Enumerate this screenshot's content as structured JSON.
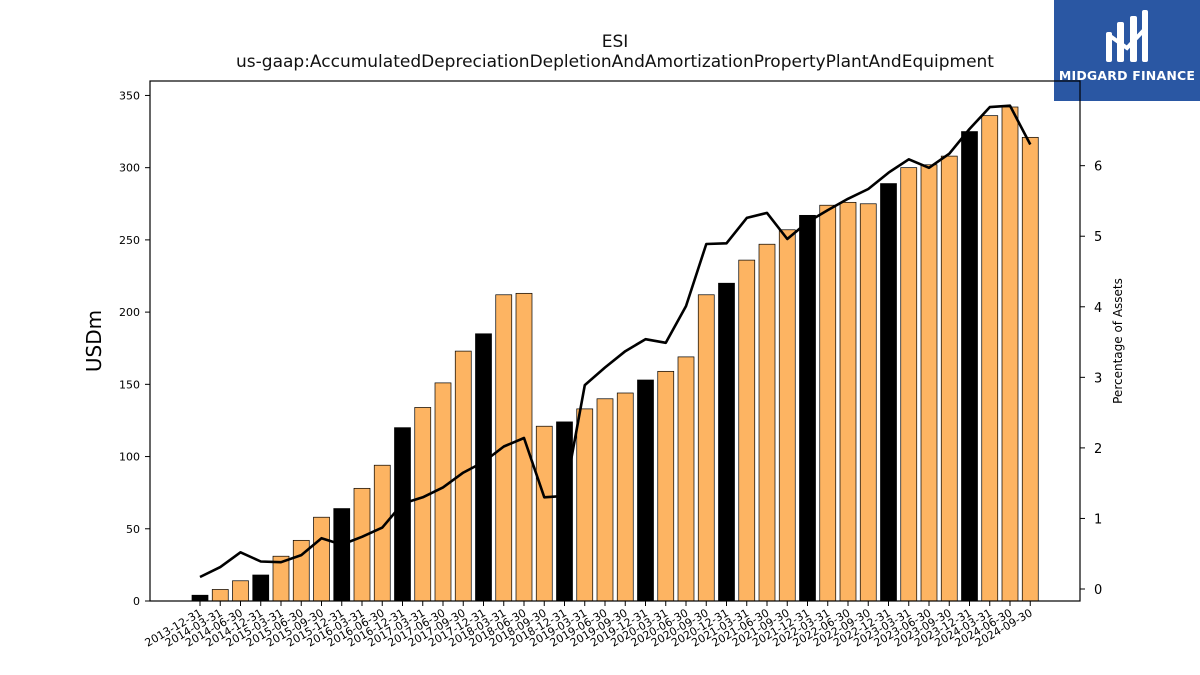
{
  "brand": {
    "name": "MIDGARD FINANCE",
    "bg": "#2a57a3"
  },
  "chart_data": {
    "type": "bar",
    "title": "ESI",
    "subtitle": "us-gaap:AccumulatedDepreciationDepletionAndAmortizationPropertyPlantAndEquipment",
    "ylabel": "USDm",
    "y2label": "Percentage of Assets",
    "ylim": [
      0,
      360
    ],
    "y2lim": [
      -0.17,
      7.2
    ],
    "yticks": [
      0,
      50,
      100,
      150,
      200,
      250,
      300,
      350
    ],
    "y2ticks": [
      0,
      1,
      2,
      3,
      4,
      5,
      6
    ],
    "colors": {
      "annual": "#000000",
      "quarter": "#fdb462",
      "line": "#000000"
    },
    "categories": [
      "2013-12-31",
      "2014-03-31",
      "2014-06-30",
      "2014-12-31",
      "2015-03-31",
      "2015-06-30",
      "2015-09-30",
      "2015-12-31",
      "2016-03-31",
      "2016-06-30",
      "2016-12-31",
      "2017-03-31",
      "2017-06-30",
      "2017-09-30",
      "2017-12-31",
      "2018-03-31",
      "2018-06-30",
      "2018-09-30",
      "2018-12-31",
      "2019-03-31",
      "2019-06-30",
      "2019-09-30",
      "2019-12-31",
      "2020-03-31",
      "2020-06-30",
      "2020-09-30",
      "2020-12-31",
      "2021-03-31",
      "2021-06-30",
      "2021-09-30",
      "2021-12-31",
      "2022-03-31",
      "2022-06-30",
      "2022-09-30",
      "2022-12-31",
      "2023-03-31",
      "2023-06-30",
      "2023-09-30",
      "2023-12-31",
      "2024-03-31",
      "2024-06-30",
      "2024-09-30"
    ],
    "series": [
      {
        "values": [
          4,
          8,
          14,
          18,
          31,
          42,
          58,
          64,
          78,
          94,
          120,
          134,
          151,
          173,
          185,
          212,
          213,
          121,
          124,
          133,
          140,
          144,
          153,
          159,
          169,
          212,
          220,
          236,
          247,
          257,
          267,
          274,
          276,
          275,
          289,
          300,
          302,
          308,
          325,
          336,
          342,
          321
        ],
        "annual": [
          true,
          false,
          false,
          true,
          false,
          false,
          false,
          true,
          false,
          false,
          true,
          false,
          false,
          false,
          true,
          false,
          false,
          false,
          true,
          false,
          false,
          false,
          true,
          false,
          false,
          false,
          true,
          false,
          false,
          false,
          true,
          false,
          false,
          false,
          true,
          false,
          false,
          false,
          true,
          false,
          false,
          false
        ]
      },
      {
        "values": [
          0.17,
          0.31,
          0.52,
          0.39,
          0.38,
          0.48,
          0.72,
          0.63,
          0.74,
          0.87,
          1.21,
          1.3,
          1.44,
          1.65,
          1.8,
          2.02,
          2.14,
          1.3,
          1.32,
          2.89,
          3.14,
          3.37,
          3.54,
          3.49,
          4.01,
          4.89,
          4.9,
          5.26,
          5.33,
          4.96,
          5.2,
          5.37,
          5.53,
          5.67,
          5.9,
          6.09,
          5.97,
          6.17,
          6.52,
          6.83,
          6.85,
          6.3
        ]
      }
    ]
  }
}
